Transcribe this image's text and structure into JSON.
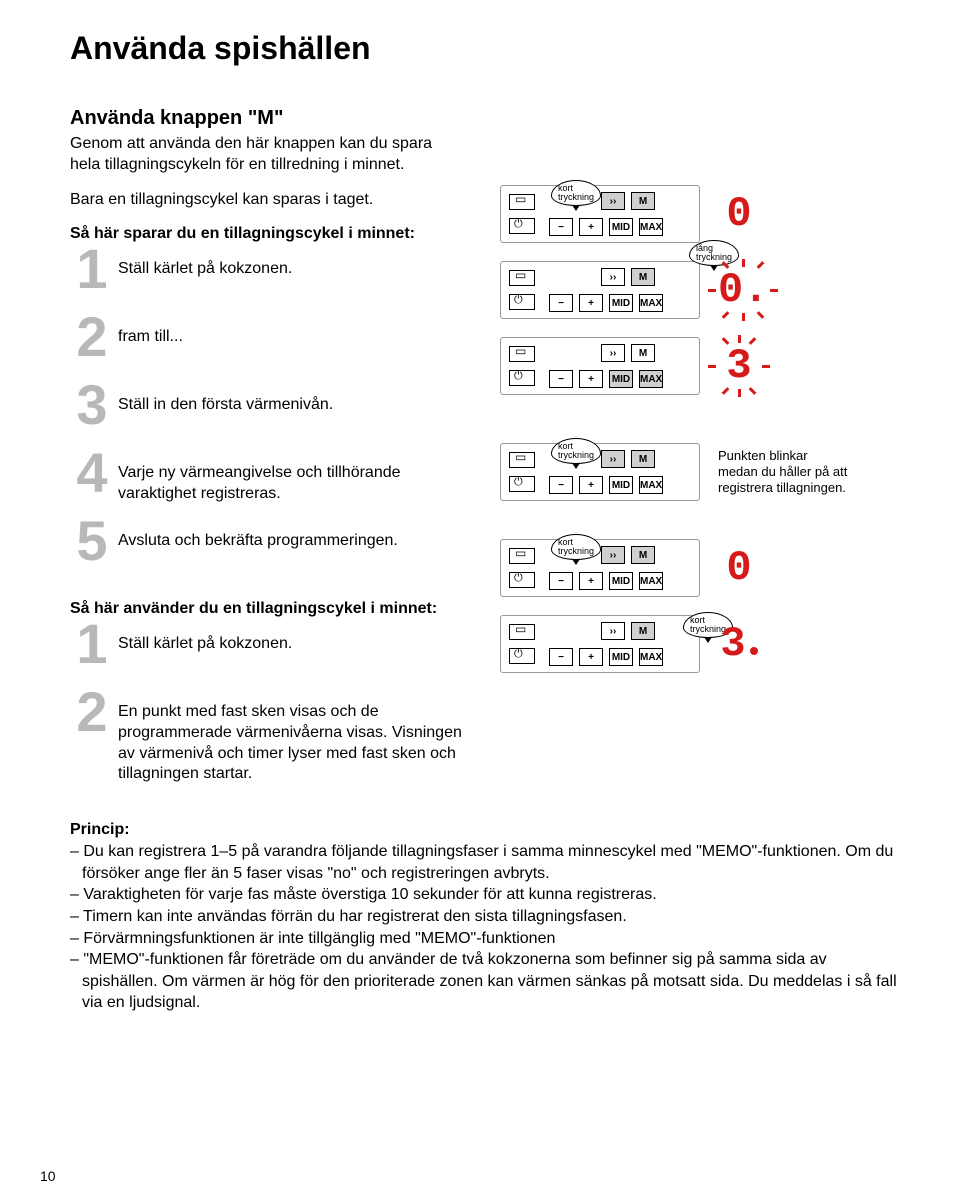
{
  "title": "Använda spishällen",
  "subtitle": "Använda knappen \"M\"",
  "intro": "Genom att använda den här knappen kan du spara hela tillagningscykeln för en tillredning i minnet.",
  "intro2": "Bara en tillagningscykel kan sparas i taget.",
  "save_head": "Så här sparar du en tillagningscykel i minnet:",
  "use_head": "Så här använder du en tillagningscykel i minnet:",
  "save_steps": [
    {
      "n": "1",
      "t": "Ställ kärlet på kokzonen."
    },
    {
      "n": "2",
      "t": "fram till..."
    },
    {
      "n": "3",
      "t": "Ställ in den första värmenivån."
    },
    {
      "n": "4",
      "t": "Varje ny värmeangivelse och tillhörande varaktighet registreras."
    },
    {
      "n": "5",
      "t": "Avsluta och bekräfta programmeringen."
    }
  ],
  "use_steps": [
    {
      "n": "1",
      "t": "Ställ kärlet på kokzonen."
    },
    {
      "n": "2",
      "t": "En punkt med fast sken visas och de programmerade värmenivåerna visas. Visningen av värmenivå och timer lyser med fast sken och tillagningen startar."
    }
  ],
  "bubble_short": "kort\ntryckning",
  "bubble_long": "lång\ntryckning",
  "keys": {
    "dbl": "››",
    "M": "M",
    "minus": "−",
    "plus": "+",
    "mid": "MID",
    "max": "MAX"
  },
  "digits": {
    "zero": "0",
    "zeroB": "0.",
    "three": "3",
    "threeDot": "3."
  },
  "note": "Punkten blinkar medan du håller på att registrera tillagningen.",
  "principle_head": "Princip:",
  "principles": [
    "– Du kan registrera 1–5 på varandra följande tillagningsfaser i samma minnescykel med \"MEMO\"-funktionen. Om du försöker ange fler än 5 faser visas \"no\" och registreringen avbryts.",
    "– Varaktigheten för varje fas måste överstiga 10 sekunder för att kunna registreras.",
    "– Timern kan inte användas förrän du har registrerat den sista tillagningsfasen.",
    "– Förvärmningsfunktionen är inte tillgänglig med \"MEMO\"-funktionen",
    "– \"MEMO\"-funktionen får företräde om du använder de två kokzonerna som befinner sig på samma sida av spishällen. Om värmen är hög för den prioriterade zonen kan värmen sänkas på motsatt sida. Du meddelas i så fall via en ljudsignal."
  ],
  "page_number": "10",
  "colors": {
    "digit": "#d61a1a",
    "stepnum": "#b8b8b8"
  }
}
